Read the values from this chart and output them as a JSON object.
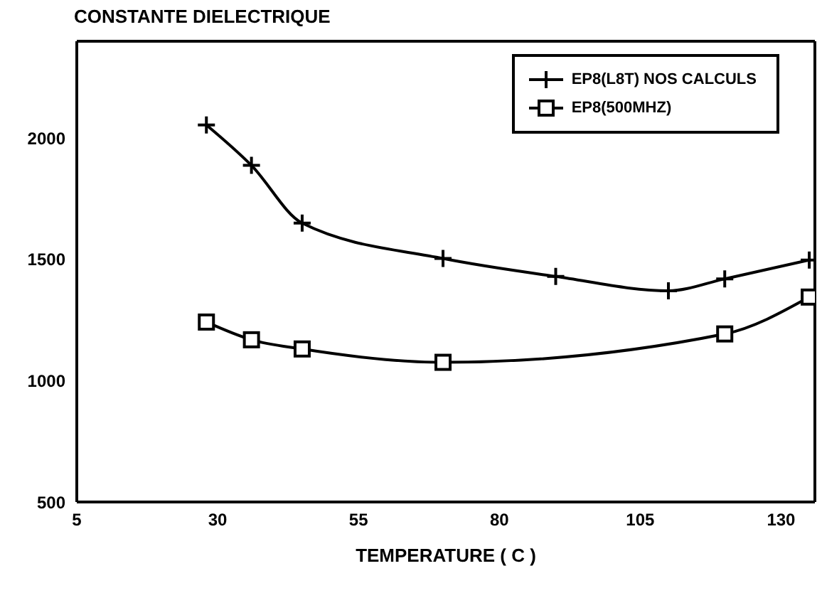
{
  "chart_data": {
    "type": "line",
    "title": "CONSTANTE DIELECTRIQUE",
    "xlabel": "TEMPERATURE (  C )",
    "xlim": [
      5,
      136
    ],
    "xticks": [
      5,
      30,
      55,
      80,
      105,
      130
    ],
    "ylim": [
      500,
      2400
    ],
    "yticks": [
      500,
      1000,
      1500,
      2000
    ],
    "grid": false,
    "legend": "top right",
    "line_style": "solid",
    "series": [
      {
        "name": "EP8(L8T) NOS CALCULS",
        "color": "#000000",
        "marker": "cross",
        "x": [
          28,
          36,
          45,
          70,
          90,
          110,
          120,
          135
        ],
        "values": [
          2055,
          1888,
          1650,
          1504,
          1430,
          1371,
          1420,
          1498
        ]
      },
      {
        "name": "EP8(500MHZ)",
        "color": "#000000",
        "marker": "square",
        "x": [
          28,
          36,
          45,
          70,
          120,
          135
        ],
        "values": [
          1242,
          1169,
          1131,
          1076,
          1193,
          1345
        ]
      }
    ]
  }
}
